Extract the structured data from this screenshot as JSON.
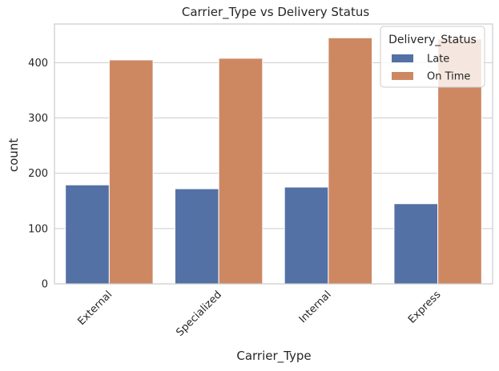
{
  "chart_data": {
    "type": "bar",
    "title": "Carrier_Type vs Delivery Status",
    "xlabel": "Carrier_Type",
    "ylabel": "count",
    "categories": [
      "External",
      "Specialized",
      "Internal",
      "Express"
    ],
    "series": [
      {
        "name": "Late",
        "values": [
          179,
          172,
          175,
          145
        ],
        "color": "#5471a6"
      },
      {
        "name": "On Time",
        "values": [
          405,
          408,
          445,
          443
        ],
        "color": "#cd8862"
      }
    ],
    "ylim": [
      0,
      470
    ],
    "yticks": [
      0,
      100,
      200,
      300,
      400
    ],
    "grid": true,
    "legend": {
      "title": "Delivery_Status",
      "placement": "top-right"
    }
  }
}
